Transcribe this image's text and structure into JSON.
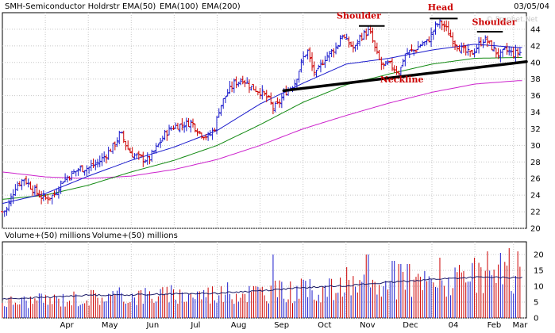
{
  "header": {
    "symbol": "SMH-Semiconductor Holdrstr",
    "date": "03/05/04",
    "watermark": "© Prophet.Net",
    "legend": [
      {
        "label": "EMA(50)",
        "color": "#1a1acc"
      },
      {
        "label": "EMA(100)",
        "color": "#138a13"
      },
      {
        "label": "EMA(200)",
        "color": "#cc22cc"
      }
    ]
  },
  "volume_header": {
    "labels": [
      "Volume+(50) millions",
      "Volume+(50) millions"
    ]
  },
  "colors": {
    "up": "#1a1acc",
    "down": "#cc0000",
    "ema50": "#1a1acc",
    "ema100": "#138a13",
    "ema200": "#cc22cc",
    "grid": "#c8c8c8",
    "neckline": "#000000",
    "annotation": "#cc0000"
  },
  "chart_data": [
    {
      "type": "line",
      "series_kind": "ohlc-price",
      "ylim": [
        20,
        46
      ],
      "yticks": [
        20,
        22,
        24,
        26,
        28,
        30,
        32,
        34,
        36,
        38,
        40,
        42,
        44
      ],
      "x_month_labels": [
        "Apr",
        "May",
        "Jun",
        "Jul",
        "Aug",
        "Sep",
        "Oct",
        "Nov",
        "Dec",
        "04",
        "Feb",
        "Mar"
      ],
      "month_positions": [
        1.0,
        2.0,
        3.0,
        4.0,
        5.0,
        6.0,
        7.0,
        8.0,
        9.0,
        10.0,
        11.0,
        11.9
      ],
      "x_range": [
        0,
        12.2
      ],
      "price_path": [
        [
          0.0,
          22.0
        ],
        [
          0.1,
          22.3
        ],
        [
          0.3,
          25.0
        ],
        [
          0.5,
          26.0
        ],
        [
          0.7,
          24.8
        ],
        [
          0.9,
          23.8
        ],
        [
          1.0,
          23.6
        ],
        [
          1.2,
          24.0
        ],
        [
          1.4,
          25.8
        ],
        [
          1.6,
          26.5
        ],
        [
          1.8,
          27.2
        ],
        [
          2.0,
          27.3
        ],
        [
          2.2,
          27.8
        ],
        [
          2.4,
          28.8
        ],
        [
          2.6,
          30.0
        ],
        [
          2.75,
          31.5
        ],
        [
          2.9,
          29.8
        ],
        [
          3.0,
          29.0
        ],
        [
          3.2,
          28.5
        ],
        [
          3.4,
          28.2
        ],
        [
          3.6,
          29.8
        ],
        [
          3.8,
          31.5
        ],
        [
          4.0,
          32.3
        ],
        [
          4.2,
          32.5
        ],
        [
          4.4,
          32.8
        ],
        [
          4.6,
          31.5
        ],
        [
          4.8,
          31.0
        ],
        [
          4.95,
          32.2
        ],
        [
          5.05,
          34.5
        ],
        [
          5.2,
          36.0
        ],
        [
          5.4,
          37.5
        ],
        [
          5.6,
          38.0
        ],
        [
          5.8,
          37.0
        ],
        [
          6.0,
          36.5
        ],
        [
          6.2,
          35.5
        ],
        [
          6.3,
          34.5
        ],
        [
          6.4,
          34.8
        ],
        [
          6.6,
          36.5
        ],
        [
          6.8,
          37.5
        ],
        [
          6.9,
          39.0
        ],
        [
          7.0,
          40.5
        ],
        [
          7.1,
          41.5
        ],
        [
          7.2,
          39.5
        ],
        [
          7.3,
          38.5
        ],
        [
          7.5,
          40.5
        ],
        [
          7.7,
          41.5
        ],
        [
          7.8,
          42.0
        ],
        [
          7.9,
          43.5
        ],
        [
          8.0,
          42.5
        ],
        [
          8.1,
          42.2
        ],
        [
          8.2,
          41.5
        ],
        [
          8.3,
          43.0
        ],
        [
          8.45,
          43.5
        ],
        [
          8.55,
          43.8
        ],
        [
          8.65,
          42.0
        ],
        [
          8.75,
          40.5
        ],
        [
          8.85,
          39.5
        ],
        [
          9.0,
          39.8
        ],
        [
          9.15,
          39.2
        ],
        [
          9.25,
          38.8
        ],
        [
          9.35,
          40.8
        ],
        [
          9.45,
          41.2
        ],
        [
          9.6,
          41.5
        ],
        [
          9.75,
          42.2
        ],
        [
          9.9,
          42.5
        ],
        [
          10.0,
          43.5
        ],
        [
          10.1,
          44.5
        ],
        [
          10.2,
          44.8
        ],
        [
          10.3,
          44.3
        ],
        [
          10.45,
          43.0
        ],
        [
          10.6,
          42.0
        ],
        [
          10.75,
          41.3
        ],
        [
          10.9,
          41.0
        ],
        [
          11.0,
          41.5
        ],
        [
          11.1,
          42.2
        ],
        [
          11.2,
          42.8
        ],
        [
          11.3,
          42.5
        ],
        [
          11.4,
          41.8
        ],
        [
          11.5,
          41.2
        ],
        [
          11.6,
          40.8
        ],
        [
          11.7,
          41.5
        ],
        [
          11.8,
          41.3
        ],
        [
          11.9,
          41.0
        ],
        [
          12.0,
          41.2
        ]
      ],
      "ema50": [
        [
          0.0,
          23.0
        ],
        [
          1.0,
          24.2
        ],
        [
          2.0,
          26.3
        ],
        [
          3.0,
          28.2
        ],
        [
          4.0,
          29.8
        ],
        [
          5.0,
          31.8
        ],
        [
          6.0,
          35.0
        ],
        [
          7.0,
          37.5
        ],
        [
          8.0,
          39.8
        ],
        [
          9.0,
          40.5
        ],
        [
          10.0,
          41.5
        ],
        [
          11.0,
          42.2
        ],
        [
          12.0,
          41.8
        ]
      ],
      "ema100": [
        [
          0.0,
          23.5
        ],
        [
          1.0,
          24.0
        ],
        [
          2.0,
          25.2
        ],
        [
          3.0,
          26.8
        ],
        [
          4.0,
          28.2
        ],
        [
          5.0,
          30.0
        ],
        [
          6.0,
          32.5
        ],
        [
          7.0,
          35.2
        ],
        [
          8.0,
          37.3
        ],
        [
          9.0,
          38.6
        ],
        [
          10.0,
          39.8
        ],
        [
          11.0,
          40.5
        ],
        [
          12.0,
          40.6
        ]
      ],
      "ema200": [
        [
          0.0,
          26.8
        ],
        [
          1.0,
          26.2
        ],
        [
          2.0,
          26.0
        ],
        [
          3.0,
          26.3
        ],
        [
          4.0,
          27.1
        ],
        [
          5.0,
          28.3
        ],
        [
          6.0,
          30.0
        ],
        [
          7.0,
          32.0
        ],
        [
          8.0,
          33.6
        ],
        [
          9.0,
          35.1
        ],
        [
          10.0,
          36.4
        ],
        [
          11.0,
          37.4
        ],
        [
          12.0,
          37.8
        ]
      ],
      "neckline": [
        [
          6.55,
          36.6
        ],
        [
          12.2,
          40.1
        ]
      ],
      "annotations": [
        {
          "text": "Shoulder",
          "x": 8.3,
          "y": 45.3,
          "bar": [
            [
              8.3,
              44.4
            ],
            [
              8.9,
              44.4
            ]
          ]
        },
        {
          "text": "Head",
          "x": 10.2,
          "y": 46.3,
          "bar": [
            [
              9.95,
              45.3
            ],
            [
              10.6,
              45.3
            ]
          ]
        },
        {
          "text": "Shoulder",
          "x": 11.45,
          "y": 44.5,
          "bar": [
            [
              11.05,
              43.7
            ],
            [
              11.65,
              43.7
            ]
          ]
        },
        {
          "text": "Neckline",
          "x": 9.3,
          "y": 37.6
        }
      ]
    },
    {
      "type": "bar",
      "series_kind": "volume",
      "ylim": [
        0,
        24
      ],
      "yticks": [
        0,
        5,
        10,
        15,
        20
      ],
      "volume_anchor": [
        [
          0.0,
          5
        ],
        [
          1.0,
          5.5
        ],
        [
          2.0,
          6.5
        ],
        [
          3.0,
          7.0
        ],
        [
          4.0,
          7.2
        ],
        [
          5.0,
          7.8
        ],
        [
          6.0,
          8.2
        ],
        [
          7.0,
          8.6
        ],
        [
          8.0,
          9.2
        ],
        [
          9.0,
          10.2
        ],
        [
          10.0,
          11.0
        ],
        [
          11.0,
          12.0
        ],
        [
          12.0,
          12.5
        ]
      ],
      "volume_avg": [
        [
          0.0,
          6.0
        ],
        [
          1.0,
          6.5
        ],
        [
          2.0,
          7.2
        ],
        [
          3.0,
          7.3
        ],
        [
          4.0,
          7.6
        ],
        [
          5.0,
          7.8
        ],
        [
          6.0,
          8.6
        ],
        [
          7.0,
          9.5
        ],
        [
          8.0,
          10.2
        ],
        [
          9.0,
          11.2
        ],
        [
          10.0,
          12.2
        ],
        [
          11.0,
          12.8
        ],
        [
          12.0,
          12.7
        ]
      ],
      "volume_spikes": [
        [
          6.3,
          20
        ],
        [
          8.5,
          20
        ],
        [
          9.1,
          18
        ],
        [
          9.25,
          17
        ],
        [
          9.45,
          17
        ],
        [
          10.2,
          19
        ],
        [
          11.0,
          19
        ],
        [
          11.3,
          21
        ],
        [
          11.6,
          20.5
        ],
        [
          11.8,
          22
        ],
        [
          12.0,
          21
        ],
        [
          8.0,
          16
        ]
      ]
    }
  ]
}
